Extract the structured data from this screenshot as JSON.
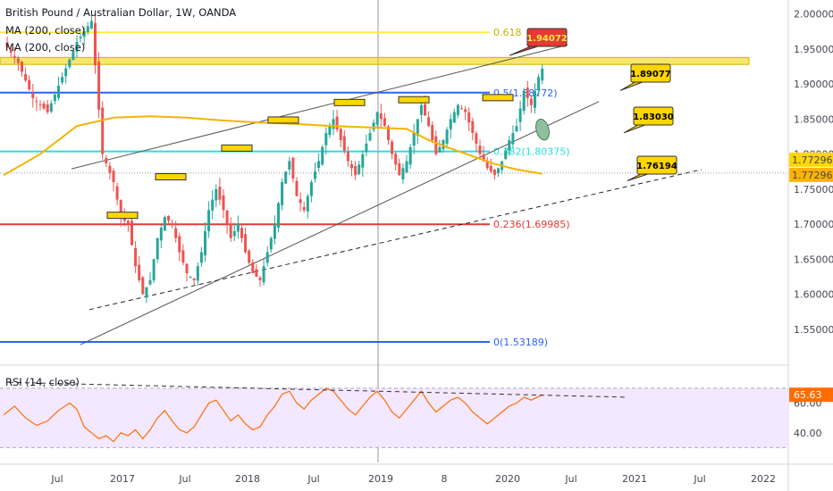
{
  "header": {
    "title": "British Pound / Australian Dollar, 1W, OANDA",
    "ma1": "MA (200, close)",
    "ma2": "MA (200, close)",
    "rsi": "RSI (14, close)"
  },
  "colors": {
    "up": "#26a69a",
    "down": "#ef5350",
    "ma": "#f5b400",
    "rsi": "#ff6d00",
    "rsi_bg": "#f3e8ff",
    "fib0": "#2962ff",
    "fib236": "#e53935",
    "fib382": "#26e0e0",
    "fib5": "#2962ff",
    "fib618": "#ffeb3b",
    "zone": "#f0d000",
    "price_tag": "#ffd600"
  },
  "chart_data": [
    {
      "type": "candlestick",
      "symbol": "GBPAUD",
      "interval": "1W",
      "ylim": [
        1.5,
        2.02
      ],
      "y_ticks": [
        1.55,
        1.6,
        1.65,
        1.7,
        1.75,
        1.8,
        1.85,
        1.9,
        1.95,
        2.0
      ],
      "y_tick_labels": [
        "1.55000",
        "1.60000",
        "1.65000",
        "1.70000",
        "1.75000",
        "1.80000",
        "1.85000",
        "1.90000",
        "1.95000",
        "2.00000"
      ],
      "x_tick_labels": [
        "Jul",
        "2017",
        "Jul",
        "2018",
        "Jul",
        "2019",
        "8",
        "2020",
        "Jul",
        "2021",
        "Jul",
        "2022"
      ],
      "current_price": "1.77296",
      "current_price_value": 1.77296,
      "close_path": [
        [
          0,
          1.96
        ],
        [
          4,
          1.93
        ],
        [
          8,
          1.88
        ],
        [
          12,
          1.86
        ],
        [
          16,
          1.91
        ],
        [
          20,
          1.96
        ],
        [
          24,
          1.99
        ],
        [
          27,
          1.8
        ],
        [
          30,
          1.76
        ],
        [
          32,
          1.71
        ],
        [
          34,
          1.7
        ],
        [
          36,
          1.64
        ],
        [
          38,
          1.6
        ],
        [
          40,
          1.62
        ],
        [
          42,
          1.68
        ],
        [
          44,
          1.71
        ],
        [
          46,
          1.7
        ],
        [
          48,
          1.66
        ],
        [
          50,
          1.63
        ],
        [
          52,
          1.62
        ],
        [
          54,
          1.66
        ],
        [
          56,
          1.72
        ],
        [
          58,
          1.75
        ],
        [
          60,
          1.72
        ],
        [
          62,
          1.68
        ],
        [
          64,
          1.7
        ],
        [
          66,
          1.66
        ],
        [
          68,
          1.63
        ],
        [
          70,
          1.62
        ],
        [
          72,
          1.66
        ],
        [
          74,
          1.7
        ],
        [
          76,
          1.76
        ],
        [
          78,
          1.79
        ],
        [
          80,
          1.74
        ],
        [
          82,
          1.72
        ],
        [
          84,
          1.76
        ],
        [
          86,
          1.79
        ],
        [
          88,
          1.83
        ],
        [
          90,
          1.85
        ],
        [
          92,
          1.82
        ],
        [
          94,
          1.79
        ],
        [
          96,
          1.77
        ],
        [
          98,
          1.8
        ],
        [
          100,
          1.83
        ],
        [
          102,
          1.86
        ],
        [
          104,
          1.84
        ],
        [
          106,
          1.8
        ],
        [
          108,
          1.77
        ],
        [
          110,
          1.79
        ],
        [
          112,
          1.83
        ],
        [
          114,
          1.87
        ],
        [
          116,
          1.84
        ],
        [
          118,
          1.8
        ],
        [
          120,
          1.82
        ],
        [
          122,
          1.85
        ],
        [
          124,
          1.87
        ],
        [
          126,
          1.86
        ],
        [
          128,
          1.83
        ],
        [
          130,
          1.8
        ],
        [
          132,
          1.78
        ],
        [
          134,
          1.77
        ],
        [
          136,
          1.79
        ],
        [
          138,
          1.82
        ],
        [
          140,
          1.84
        ],
        [
          142,
          1.89
        ],
        [
          144,
          1.87
        ],
        [
          146,
          1.91
        ],
        [
          147,
          1.922
        ]
      ],
      "ma200": [
        [
          0,
          1.77
        ],
        [
          10,
          1.8
        ],
        [
          20,
          1.84
        ],
        [
          30,
          1.852
        ],
        [
          40,
          1.854
        ],
        [
          50,
          1.852
        ],
        [
          60,
          1.848
        ],
        [
          70,
          1.845
        ],
        [
          80,
          1.843
        ],
        [
          90,
          1.84
        ],
        [
          100,
          1.838
        ],
        [
          110,
          1.836
        ],
        [
          116,
          1.82
        ],
        [
          122,
          1.808
        ],
        [
          128,
          1.797
        ],
        [
          134,
          1.786
        ],
        [
          140,
          1.778
        ],
        [
          147,
          1.772
        ]
      ]
    },
    {
      "type": "line",
      "name": "RSI (14, close)",
      "ylim": [
        20,
        85
      ],
      "y_ticks": [
        40,
        60
      ],
      "y_tick_labels": [
        "40.00",
        "60.00"
      ],
      "current_value": "65.63",
      "band_levels": [
        30,
        70
      ],
      "values": [
        [
          0,
          52
        ],
        [
          3,
          58
        ],
        [
          6,
          50
        ],
        [
          9,
          45
        ],
        [
          12,
          48
        ],
        [
          15,
          55
        ],
        [
          18,
          60
        ],
        [
          20,
          56
        ],
        [
          22,
          44
        ],
        [
          24,
          40
        ],
        [
          26,
          36
        ],
        [
          28,
          38
        ],
        [
          30,
          34
        ],
        [
          32,
          40
        ],
        [
          34,
          38
        ],
        [
          36,
          42
        ],
        [
          38,
          36
        ],
        [
          40,
          42
        ],
        [
          42,
          50
        ],
        [
          44,
          55
        ],
        [
          46,
          48
        ],
        [
          48,
          42
        ],
        [
          50,
          40
        ],
        [
          52,
          44
        ],
        [
          54,
          52
        ],
        [
          56,
          60
        ],
        [
          58,
          62
        ],
        [
          60,
          55
        ],
        [
          62,
          48
        ],
        [
          64,
          52
        ],
        [
          66,
          46
        ],
        [
          68,
          42
        ],
        [
          70,
          44
        ],
        [
          72,
          52
        ],
        [
          74,
          58
        ],
        [
          76,
          66
        ],
        [
          78,
          68
        ],
        [
          80,
          60
        ],
        [
          82,
          56
        ],
        [
          84,
          62
        ],
        [
          86,
          66
        ],
        [
          88,
          70
        ],
        [
          90,
          68
        ],
        [
          92,
          62
        ],
        [
          94,
          56
        ],
        [
          96,
          52
        ],
        [
          98,
          58
        ],
        [
          100,
          64
        ],
        [
          102,
          68
        ],
        [
          104,
          62
        ],
        [
          106,
          54
        ],
        [
          108,
          50
        ],
        [
          110,
          56
        ],
        [
          112,
          62
        ],
        [
          114,
          68
        ],
        [
          116,
          60
        ],
        [
          118,
          54
        ],
        [
          120,
          58
        ],
        [
          122,
          62
        ],
        [
          124,
          64
        ],
        [
          126,
          60
        ],
        [
          128,
          54
        ],
        [
          130,
          50
        ],
        [
          132,
          46
        ],
        [
          134,
          50
        ],
        [
          136,
          54
        ],
        [
          138,
          58
        ],
        [
          140,
          60
        ],
        [
          142,
          64
        ],
        [
          144,
          62
        ],
        [
          147,
          65.63
        ]
      ]
    }
  ],
  "fibs": [
    {
      "label": "0(1.53189)",
      "value": 1.53189
    },
    {
      "label": "0.236(1.69985)",
      "value": 1.69985
    },
    {
      "label": "0.382(1.80375)",
      "value": 1.80375
    },
    {
      "label": "0.5(1.88772)",
      "value": 1.88772
    },
    {
      "label": "0.618",
      "value": 1.9738
    }
  ],
  "callouts": [
    {
      "label": "1.94072",
      "value": 1.94072
    },
    {
      "label": "1.89077",
      "value": 1.89077
    },
    {
      "label": "1.83030",
      "value": 1.8303
    },
    {
      "label": "1.76194",
      "value": 1.76194
    }
  ],
  "resistance_zone": [
    1.928,
    1.938
  ],
  "swing_highs": [
    1.712,
    1.767,
    1.808,
    1.848,
    1.873,
    1.877,
    1.88
  ]
}
